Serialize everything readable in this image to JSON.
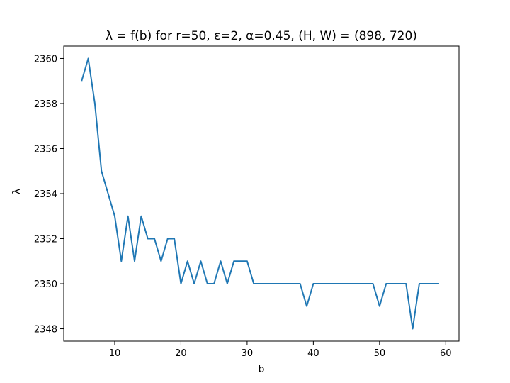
{
  "chart_data": {
    "type": "line",
    "title": "λ = f(b) for r=50, ε=2, α=0.45, (H, W) = (898, 720)",
    "xlabel": "b",
    "ylabel": "λ",
    "xlim": [
      2.3,
      62.0
    ],
    "ylim": [
      2347.45,
      2360.55
    ],
    "xticks": [
      10,
      20,
      30,
      40,
      50,
      60
    ],
    "yticks": [
      2348,
      2350,
      2352,
      2354,
      2356,
      2358,
      2360
    ],
    "grid": false,
    "legend": "none",
    "series": [
      {
        "color": "#1f77b4",
        "x": [
          5,
          6,
          7,
          8,
          9,
          10,
          11,
          12,
          13,
          14,
          15,
          16,
          17,
          18,
          19,
          20,
          21,
          22,
          23,
          24,
          25,
          26,
          27,
          28,
          29,
          30,
          31,
          32,
          33,
          34,
          35,
          36,
          37,
          38,
          39,
          40,
          41,
          42,
          43,
          44,
          45,
          46,
          47,
          48,
          49,
          50,
          51,
          52,
          53,
          54,
          55,
          56,
          57,
          58,
          59
        ],
        "values": [
          2359,
          2360,
          2358,
          2355,
          2354,
          2353,
          2351,
          2353,
          2351,
          2353,
          2352,
          2352,
          2351,
          2352,
          2352,
          2350,
          2351,
          2350,
          2351,
          2350,
          2350,
          2351,
          2350,
          2351,
          2351,
          2351,
          2350,
          2350,
          2350,
          2350,
          2350,
          2350,
          2350,
          2350,
          2349,
          2350,
          2350,
          2350,
          2350,
          2350,
          2350,
          2350,
          2350,
          2350,
          2350,
          2349,
          2350,
          2350,
          2350,
          2350,
          2348,
          2350,
          2350,
          2350,
          2350
        ]
      }
    ]
  }
}
